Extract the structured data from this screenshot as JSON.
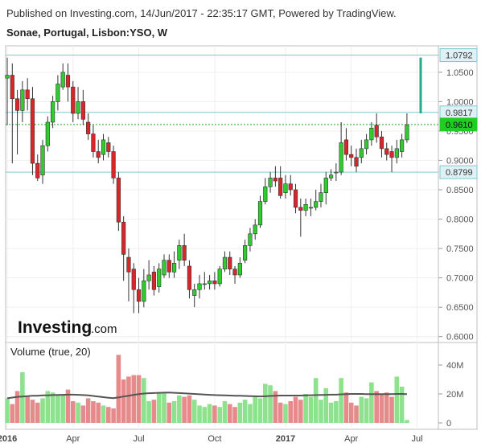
{
  "header": {
    "published": "Published on Investing.com, 14/Jun/2017 - 22:35:17 GMT, Powered by TradingView.",
    "title": "Sonae, Portugal, Lisbon:YSO, W"
  },
  "watermark": {
    "brand": "Investing",
    "suffix": ".com"
  },
  "colors": {
    "up": "#2ecc2e",
    "down": "#d9262a",
    "vol_up": "#8ee28e",
    "vol_down": "#e58b8b",
    "hline": "#7fc9d4",
    "dotted": "#22aa22",
    "ma": "#555555"
  },
  "chart_data": [
    {
      "type": "candlestick",
      "x_ticks": [
        "2016",
        "Apr",
        "Jul",
        "Oct",
        "2017",
        "Apr",
        "Jul"
      ],
      "y_ticks": [
        "1.0500",
        "1.0000",
        "0.9500",
        "0.9000",
        "0.8500",
        "0.8000",
        "0.7500",
        "0.7000",
        "0.6500",
        "0.6000"
      ],
      "ylim": [
        0.59,
        1.095
      ],
      "horizontal_lines": [
        {
          "value": 1.0792,
          "label": "1.0792",
          "style": "hline"
        },
        {
          "value": 0.9817,
          "label": "0.9817",
          "style": "hline"
        },
        {
          "value": 0.961,
          "label": "0.9610",
          "style": "current"
        },
        {
          "value": 0.8799,
          "label": "0.8799",
          "style": "hline"
        }
      ],
      "range_marker": [
        1.075,
        0.98
      ],
      "candles": [
        [
          1.04,
          1.045,
          1.075,
          0.96
        ],
        [
          1.045,
          1.005,
          1.065,
          0.895
        ],
        [
          1.005,
          0.985,
          1.02,
          0.91
        ],
        [
          0.985,
          1.02,
          1.035,
          0.965
        ],
        [
          1.02,
          1.005,
          1.04,
          0.985
        ],
        [
          1.005,
          0.895,
          1.025,
          0.875
        ],
        [
          0.895,
          0.87,
          0.91,
          0.865
        ],
        [
          0.875,
          0.925,
          0.935,
          0.86
        ],
        [
          0.925,
          0.965,
          0.975,
          0.915
        ],
        [
          0.965,
          1.0,
          1.01,
          0.955
        ],
        [
          1.0,
          1.03,
          1.045,
          0.985
        ],
        [
          1.025,
          1.05,
          1.065,
          1.02
        ],
        [
          1.045,
          1.025,
          1.065,
          1.0
        ],
        [
          1.025,
          0.98,
          1.035,
          0.965
        ],
        [
          0.98,
          1.0,
          1.025,
          0.97
        ],
        [
          1.0,
          0.97,
          1.02,
          0.96
        ],
        [
          0.965,
          0.945,
          0.98,
          0.935
        ],
        [
          0.945,
          0.915,
          0.96,
          0.905
        ],
        [
          0.915,
          0.905,
          0.935,
          0.895
        ],
        [
          0.91,
          0.935,
          0.945,
          0.9
        ],
        [
          0.93,
          0.915,
          0.94,
          0.905
        ],
        [
          0.915,
          0.87,
          0.925,
          0.86
        ],
        [
          0.87,
          0.795,
          0.88,
          0.78
        ],
        [
          0.795,
          0.74,
          0.805,
          0.695
        ],
        [
          0.735,
          0.71,
          0.75,
          0.66
        ],
        [
          0.715,
          0.68,
          0.725,
          0.64
        ],
        [
          0.68,
          0.66,
          0.7,
          0.64
        ],
        [
          0.66,
          0.695,
          0.715,
          0.65
        ],
        [
          0.695,
          0.705,
          0.73,
          0.68
        ],
        [
          0.71,
          0.68,
          0.72,
          0.67
        ],
        [
          0.685,
          0.715,
          0.725,
          0.675
        ],
        [
          0.705,
          0.73,
          0.74,
          0.7
        ],
        [
          0.73,
          0.71,
          0.74,
          0.7
        ],
        [
          0.71,
          0.725,
          0.745,
          0.7
        ],
        [
          0.73,
          0.755,
          0.765,
          0.715
        ],
        [
          0.755,
          0.73,
          0.775,
          0.72
        ],
        [
          0.72,
          0.68,
          0.73,
          0.665
        ],
        [
          0.67,
          0.68,
          0.69,
          0.65
        ],
        [
          0.68,
          0.69,
          0.705,
          0.665
        ],
        [
          0.69,
          0.69,
          0.71,
          0.68
        ],
        [
          0.69,
          0.695,
          0.705,
          0.68
        ],
        [
          0.695,
          0.69,
          0.71,
          0.68
        ],
        [
          0.69,
          0.715,
          0.72,
          0.685
        ],
        [
          0.715,
          0.735,
          0.745,
          0.71
        ],
        [
          0.735,
          0.715,
          0.745,
          0.705
        ],
        [
          0.715,
          0.705,
          0.72,
          0.69
        ],
        [
          0.705,
          0.725,
          0.735,
          0.7
        ],
        [
          0.73,
          0.755,
          0.765,
          0.725
        ],
        [
          0.755,
          0.775,
          0.785,
          0.745
        ],
        [
          0.775,
          0.79,
          0.8,
          0.765
        ],
        [
          0.79,
          0.83,
          0.84,
          0.785
        ],
        [
          0.83,
          0.855,
          0.87,
          0.825
        ],
        [
          0.855,
          0.87,
          0.88,
          0.845
        ],
        [
          0.87,
          0.865,
          0.89,
          0.855
        ],
        [
          0.87,
          0.84,
          0.89,
          0.835
        ],
        [
          0.845,
          0.86,
          0.875,
          0.835
        ],
        [
          0.86,
          0.85,
          0.875,
          0.84
        ],
        [
          0.85,
          0.82,
          0.86,
          0.81
        ],
        [
          0.82,
          0.815,
          0.835,
          0.77
        ],
        [
          0.815,
          0.825,
          0.835,
          0.805
        ],
        [
          0.82,
          0.82,
          0.835,
          0.805
        ],
        [
          0.82,
          0.83,
          0.85,
          0.815
        ],
        [
          0.83,
          0.845,
          0.86,
          0.82
        ],
        [
          0.845,
          0.87,
          0.88,
          0.825
        ],
        [
          0.87,
          0.875,
          0.885,
          0.865
        ],
        [
          0.88,
          0.88,
          0.895,
          0.865
        ],
        [
          0.88,
          0.93,
          0.965,
          0.875
        ],
        [
          0.935,
          0.91,
          0.955,
          0.9
        ],
        [
          0.91,
          0.905,
          0.925,
          0.89
        ],
        [
          0.905,
          0.89,
          0.92,
          0.88
        ],
        [
          0.905,
          0.92,
          0.935,
          0.895
        ],
        [
          0.92,
          0.935,
          0.945,
          0.91
        ],
        [
          0.935,
          0.955,
          0.965,
          0.925
        ],
        [
          0.96,
          0.94,
          0.98,
          0.93
        ],
        [
          0.94,
          0.92,
          0.95,
          0.905
        ],
        [
          0.92,
          0.91,
          0.93,
          0.9
        ],
        [
          0.915,
          0.905,
          0.925,
          0.88
        ],
        [
          0.905,
          0.92,
          0.935,
          0.895
        ],
        [
          0.915,
          0.935,
          0.945,
          0.905
        ],
        [
          0.935,
          0.96,
          0.98,
          0.93
        ]
      ]
    },
    {
      "type": "bar",
      "title": "Volume (true, 20)",
      "y_ticks": [
        "40M",
        "20M",
        "0"
      ],
      "ylim": [
        0,
        50000000
      ],
      "x_ticks": [
        "2016",
        "Apr",
        "Jul",
        "Oct",
        "2017",
        "Apr",
        "Jul"
      ],
      "volumes": [
        17000000,
        13000000,
        22000000,
        35000000,
        18000000,
        16000000,
        14000000,
        17000000,
        22000000,
        21000000,
        19000000,
        20000000,
        23000000,
        15000000,
        14000000,
        12000000,
        17000000,
        15000000,
        14000000,
        12000000,
        11000000,
        10000000,
        47000000,
        30000000,
        32000000,
        33000000,
        33000000,
        31000000,
        15000000,
        16000000,
        21000000,
        21000000,
        14000000,
        15000000,
        19000000,
        18000000,
        19000000,
        16000000,
        12000000,
        11000000,
        13000000,
        12000000,
        11000000,
        15000000,
        13000000,
        11000000,
        14000000,
        16000000,
        13000000,
        18000000,
        17000000,
        27000000,
        26000000,
        22000000,
        14000000,
        13000000,
        15000000,
        18000000,
        16000000,
        20000000,
        18000000,
        31000000,
        16000000,
        24000000,
        14000000,
        15000000,
        31000000,
        21000000,
        14000000,
        12000000,
        18000000,
        17000000,
        28000000,
        22000000,
        20000000,
        21000000,
        18000000,
        32000000,
        25000000,
        2000000
      ],
      "ma20": [
        17000000,
        17500000,
        18000000,
        18200000,
        18500000,
        18700000,
        18800000,
        19000000,
        19000000,
        19200000,
        19300000,
        19400000,
        19500000,
        19500000,
        19400000,
        19200000,
        19000000,
        18600000,
        18200000,
        17800000,
        17400000,
        17100000,
        17600000,
        18200000,
        18800000,
        19400000,
        19900000,
        20300000,
        20500000,
        20600000,
        20800000,
        20900000,
        21000000,
        20800000,
        20600000,
        20400000,
        20200000,
        20000000,
        19800000,
        19600000,
        19400000,
        19200000,
        19100000,
        19000000,
        18900000,
        18800000,
        18700000,
        18600000,
        18500000,
        18400000,
        18300000,
        18400000,
        18600000,
        18800000,
        18900000,
        18900000,
        18900000,
        18900000,
        18900000,
        19000000,
        19100000,
        19200000,
        19300000,
        19400000,
        19500000,
        19500000,
        19700000,
        19900000,
        20000000,
        20000000,
        20000000,
        19900000,
        19900000,
        19900000,
        19900000,
        19900000,
        19900000,
        20000000,
        20000000,
        19900000
      ]
    }
  ]
}
